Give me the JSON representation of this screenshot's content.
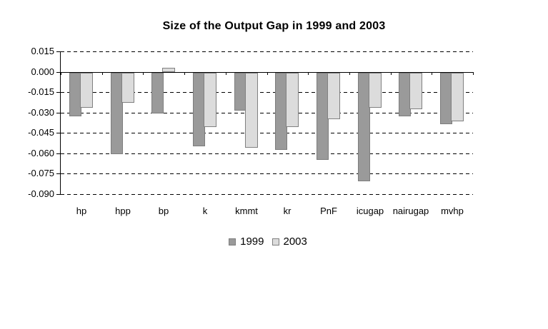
{
  "chart_data": {
    "type": "bar",
    "title": "Size of the Output Gap in 1999 and 2003",
    "categories": [
      "hp",
      "hpp",
      "bp",
      "k",
      "kmmt",
      "kr",
      "PnF",
      "icugap",
      "nairugap",
      "mvhp"
    ],
    "series": [
      {
        "name": "1999",
        "color": "#9a9a9a",
        "border_color": "#7d7d7d",
        "values": [
          -0.032,
          -0.06,
          -0.03,
          -0.054,
          -0.028,
          -0.057,
          -0.064,
          -0.08,
          -0.032,
          -0.038
        ]
      },
      {
        "name": "2003",
        "color": "#dcdcdc",
        "border_color": "#808080",
        "values": [
          -0.026,
          -0.022,
          0.003,
          -0.04,
          -0.055,
          -0.04,
          -0.034,
          -0.026,
          -0.027,
          -0.036
        ]
      }
    ],
    "y_axis": {
      "min": -0.09,
      "max": 0.015,
      "tick_step": 0.015,
      "tick_labels": [
        "0.015",
        "0.000",
        "-0.015",
        "-0.030",
        "-0.045",
        "-0.060",
        "-0.075",
        "-0.090"
      ]
    },
    "xlabel": "",
    "ylabel": "",
    "grid": "horizontal-dashed",
    "legend_position": "bottom-center",
    "background_color": "#ffffff",
    "axis_color": "#000000"
  }
}
